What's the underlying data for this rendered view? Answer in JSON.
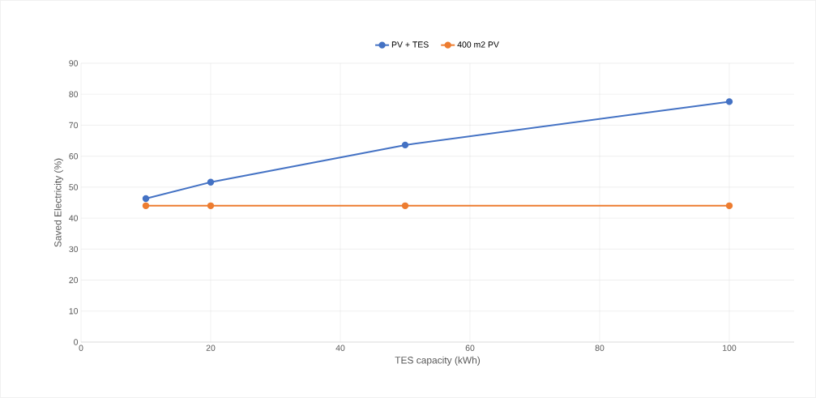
{
  "chart_data": {
    "type": "line",
    "xlabel": "TES capacity (kWh)",
    "ylabel": "Saved Electricity (%)",
    "x": [
      10,
      20,
      50,
      100
    ],
    "series": [
      {
        "name": "PV + TES",
        "color": "#4472c4",
        "values": [
          46.3,
          51.6,
          63.6,
          77.6
        ]
      },
      {
        "name": "400 m2 PV",
        "color": "#ed7d31",
        "values": [
          44,
          44,
          44,
          44
        ]
      }
    ],
    "xlim": [
      0,
      110
    ],
    "ylim": [
      0,
      90
    ],
    "xticks": [
      0,
      20,
      40,
      60,
      80,
      100
    ],
    "yticks": [
      0,
      10,
      20,
      30,
      40,
      50,
      60,
      70,
      80,
      90
    ],
    "grid": true,
    "legend": "top",
    "marker": "circle",
    "line_style": "solid"
  }
}
